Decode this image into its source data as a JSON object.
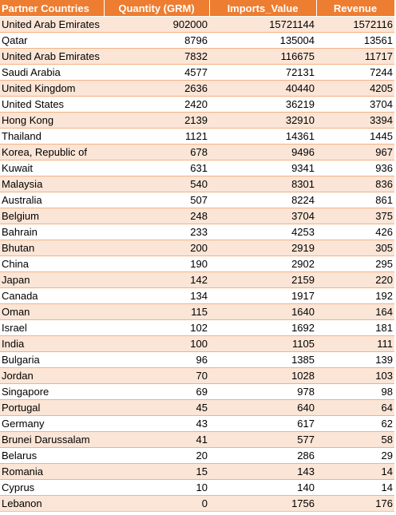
{
  "colors": {
    "header_bg": "#ED7D31",
    "header_text": "#FFFFFF",
    "band_odd": "#FBE5D6",
    "band_even": "#FFFFFF"
  },
  "table": {
    "headers": [
      "Partner Countries",
      "Quantity (GRM)",
      "Imports_Value",
      "Revenue"
    ],
    "rows": [
      [
        "United Arab Emirates",
        "902000",
        "15721144",
        "1572116"
      ],
      [
        "Qatar",
        "8796",
        "135004",
        "13561"
      ],
      [
        "United Arab Emirates",
        "7832",
        "116675",
        "11717"
      ],
      [
        "Saudi Arabia",
        "4577",
        "72131",
        "7244"
      ],
      [
        "United Kingdom",
        "2636",
        "40440",
        "4205"
      ],
      [
        "United States",
        "2420",
        "36219",
        "3704"
      ],
      [
        "Hong Kong",
        "2139",
        "32910",
        "3394"
      ],
      [
        "Thailand",
        "1121",
        "14361",
        "1445"
      ],
      [
        "Korea, Republic of",
        "678",
        "9496",
        "967"
      ],
      [
        "Kuwait",
        "631",
        "9341",
        "936"
      ],
      [
        "Malaysia",
        "540",
        "8301",
        "836"
      ],
      [
        "Australia",
        "507",
        "8224",
        "861"
      ],
      [
        "Belgium",
        "248",
        "3704",
        "375"
      ],
      [
        "Bahrain",
        "233",
        "4253",
        "426"
      ],
      [
        "Bhutan",
        "200",
        "2919",
        "305"
      ],
      [
        "China",
        "190",
        "2902",
        "295"
      ],
      [
        "Japan",
        "142",
        "2159",
        "220"
      ],
      [
        "Canada",
        "134",
        "1917",
        "192"
      ],
      [
        "Oman",
        "115",
        "1640",
        "164"
      ],
      [
        "Israel",
        "102",
        "1692",
        "181"
      ],
      [
        "India",
        "100",
        "1105",
        "111"
      ],
      [
        "Bulgaria",
        "96",
        "1385",
        "139"
      ],
      [
        "Jordan",
        "70",
        "1028",
        "103"
      ],
      [
        "Singapore",
        "69",
        "978",
        "98"
      ],
      [
        "Portugal",
        "45",
        "640",
        "64"
      ],
      [
        "Germany",
        "43",
        "617",
        "62"
      ],
      [
        "Brunei Darussalam",
        "41",
        "577",
        "58"
      ],
      [
        "Belarus",
        "20",
        "286",
        "29"
      ],
      [
        "Romania",
        "15",
        "143",
        "14"
      ],
      [
        "Cyprus",
        "10",
        "140",
        "14"
      ],
      [
        "Lebanon",
        "0",
        "1756",
        "176"
      ]
    ]
  }
}
